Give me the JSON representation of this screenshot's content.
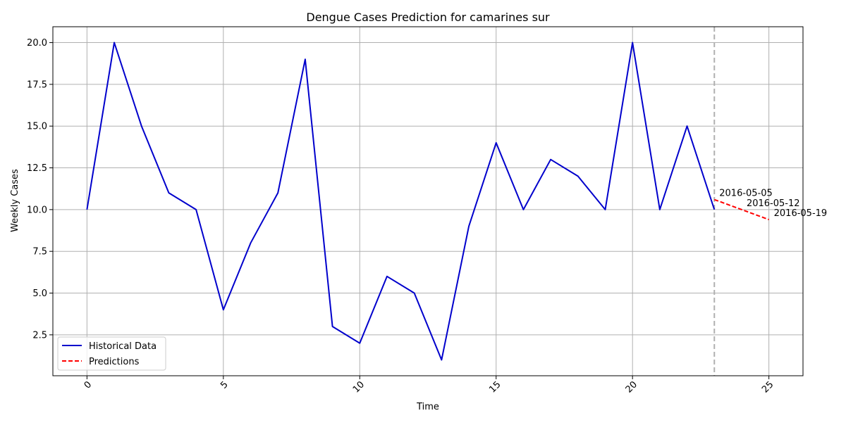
{
  "chart_data": {
    "type": "line",
    "title": "Dengue Cases Prediction for camarines sur",
    "xlabel": "Time",
    "ylabel": "Weekly Cases",
    "xlim": [
      -1.25,
      26.25
    ],
    "ylim": [
      0.05,
      20.95
    ],
    "xticks": [
      0,
      5,
      10,
      15,
      20,
      25
    ],
    "xtick_labels": [
      "0",
      "5",
      "10",
      "15",
      "20",
      "25"
    ],
    "yticks": [
      2.5,
      5.0,
      7.5,
      10.0,
      12.5,
      15.0,
      17.5,
      20.0
    ],
    "ytick_labels": [
      "2.5",
      "5.0",
      "7.5",
      "10.0",
      "12.5",
      "15.0",
      "17.5",
      "20.0"
    ],
    "grid": true,
    "legend_position": "lower-left",
    "series": [
      {
        "name": "Historical Data",
        "color": "#0000cc",
        "style": "solid",
        "x": [
          0,
          1,
          2,
          3,
          4,
          5,
          6,
          7,
          8,
          9,
          10,
          11,
          12,
          13,
          14,
          15,
          16,
          17,
          18,
          19,
          20,
          21,
          22,
          23
        ],
        "values": [
          10,
          20,
          15,
          11,
          10,
          4,
          8,
          11,
          19,
          3,
          2,
          6,
          5,
          1,
          9,
          14,
          10,
          13,
          12,
          10,
          20,
          10,
          15,
          10
        ]
      },
      {
        "name": "Predictions",
        "color": "#ff0000",
        "style": "dashed",
        "x": [
          23,
          24,
          25
        ],
        "values": [
          10.6,
          10.0,
          9.4
        ],
        "point_labels": [
          "2016-05-05",
          "2016-05-12",
          "2016-05-19"
        ]
      }
    ],
    "vertical_line": {
      "x": 23,
      "color": "#b0b0b0",
      "style": "dashed"
    }
  }
}
